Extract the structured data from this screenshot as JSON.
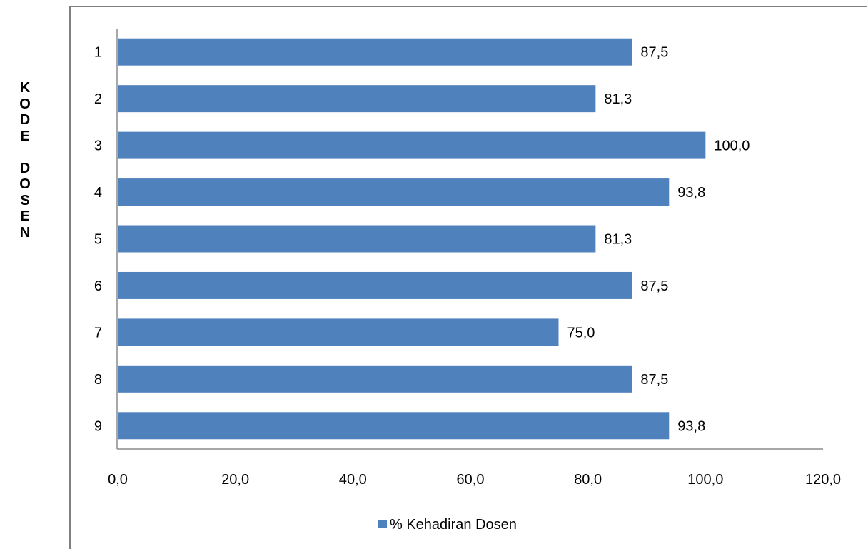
{
  "chart_data": {
    "type": "bar",
    "orientation": "horizontal",
    "categories": [
      "1",
      "2",
      "3",
      "4",
      "5",
      "6",
      "7",
      "8",
      "9"
    ],
    "series": [
      {
        "name": "% Kehadiran Dosen",
        "values": [
          87.5,
          81.3,
          100.0,
          93.8,
          81.3,
          87.5,
          75.0,
          87.5,
          93.8
        ]
      }
    ],
    "data_labels": [
      "87,5",
      "81,3",
      "100,0",
      "93,8",
      "81,3",
      "87,5",
      "75,0",
      "87,5",
      "93,8"
    ],
    "xticks": [
      "0,0",
      "20,0",
      "40,0",
      "60,0",
      "80,0",
      "100,0",
      "120,0"
    ],
    "xtick_values": [
      0,
      20,
      40,
      60,
      80,
      100,
      120
    ],
    "xlim": [
      0,
      120
    ],
    "ylabel": "K\nO\nD\nE\n\nD\nO\nS\nE\nN",
    "xlabel": "",
    "title": "",
    "legend_position": "bottom",
    "grid": false,
    "bar_color": "#4f81bd"
  }
}
